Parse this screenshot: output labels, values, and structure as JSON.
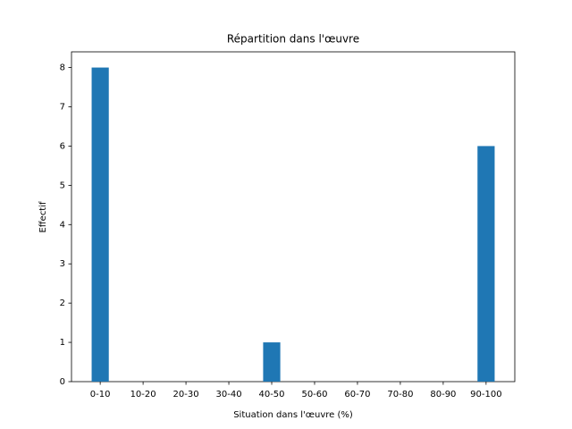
{
  "chart_data": {
    "type": "bar",
    "title": "Répartition dans l'œuvre",
    "x_label": "Situation dans l'œuvre (%)",
    "y_label": "Effectif",
    "categories": [
      "0-10",
      "10-20",
      "20-30",
      "30-40",
      "40-50",
      "50-60",
      "60-70",
      "70-80",
      "80-90",
      "90-100"
    ],
    "values": [
      8,
      0,
      0,
      0,
      1,
      0,
      0,
      0,
      0,
      6
    ],
    "color": "#1f77b4",
    "ylim": [
      0,
      8.4
    ],
    "yticks": [
      0,
      1,
      2,
      3,
      4,
      5,
      6,
      7,
      8
    ],
    "grid": false
  }
}
